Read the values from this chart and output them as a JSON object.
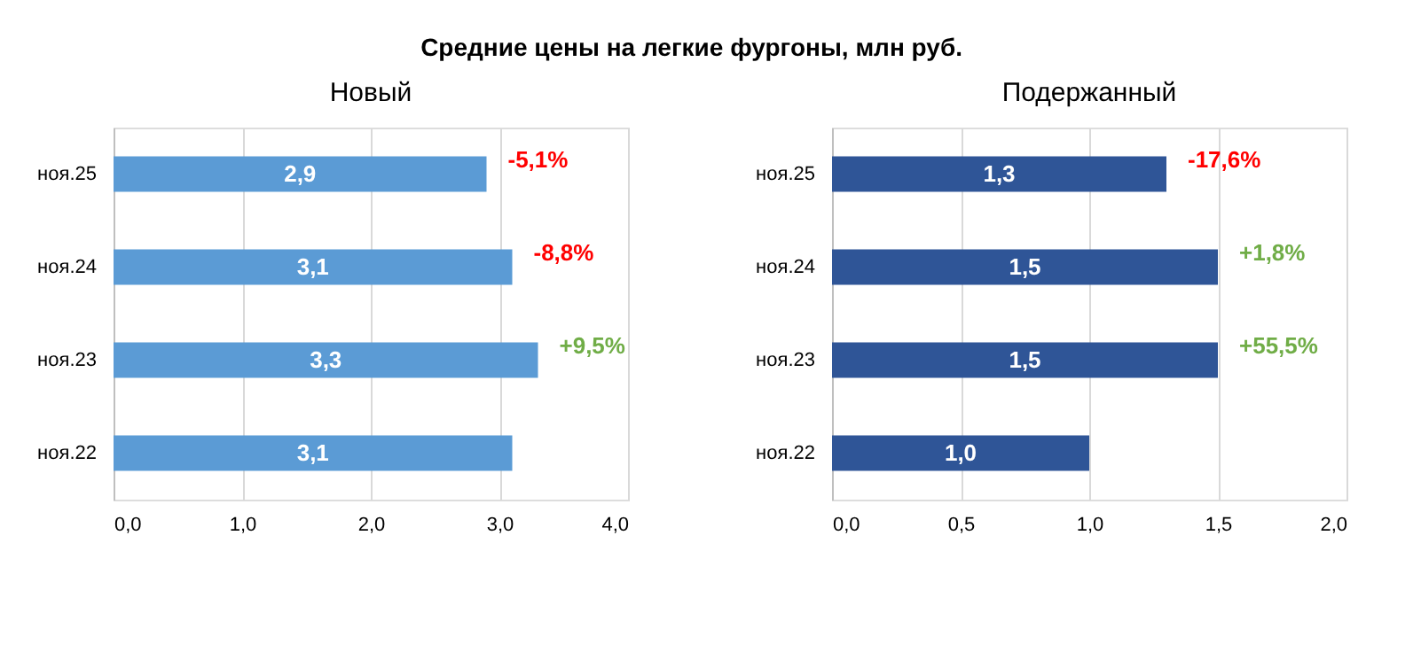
{
  "chart_data": [
    {
      "type": "bar",
      "orientation": "horizontal",
      "title": "Средние цены на легкие фургоны, млн руб.",
      "subtitle": "Новый",
      "categories": [
        "ноя.25",
        "ноя.24",
        "ноя.23",
        "ноя.22"
      ],
      "values": [
        2.9,
        3.1,
        3.3,
        3.1
      ],
      "value_labels": [
        "2,9",
        "3,1",
        "3,3",
        "3,1"
      ],
      "color": "#5b9bd5",
      "xlim": [
        0,
        4
      ],
      "xticks": [
        {
          "value": 0,
          "label": "0,0"
        },
        {
          "value": 1,
          "label": "1,0"
        },
        {
          "value": 2,
          "label": "2,0"
        },
        {
          "value": 3,
          "label": "3,0"
        },
        {
          "value": 4,
          "label": "4,0"
        }
      ],
      "grid": "x",
      "annotations": [
        {
          "text": "-5,1%",
          "x": 2.9,
          "y": "ноя.25"
        },
        {
          "text": "-8,8%",
          "x": 3.1,
          "y": "ноя.24"
        },
        {
          "text": "+9,5%",
          "x": 3.3,
          "y": "ноя.23"
        }
      ]
    },
    {
      "type": "bar",
      "orientation": "horizontal",
      "subtitle": "Подержанный",
      "categories": [
        "ноя.25",
        "ноя.24",
        "ноя.23",
        "ноя.22"
      ],
      "values": [
        1.3,
        1.5,
        1.5,
        1.0
      ],
      "value_labels": [
        "1,3",
        "1,5",
        "1,5",
        "1,0"
      ],
      "color": "#2f5597",
      "xlim": [
        0,
        2
      ],
      "xticks": [
        {
          "value": 0,
          "label": "0,0"
        },
        {
          "value": 0.5,
          "label": "0,5"
        },
        {
          "value": 1,
          "label": "1,0"
        },
        {
          "value": 1.5,
          "label": "1,5"
        },
        {
          "value": 2,
          "label": "2,0"
        }
      ],
      "grid": "x",
      "annotations": [
        {
          "text": "-17,6%",
          "x": 1.3,
          "y": "ноя.25"
        },
        {
          "text": "+1,8%",
          "x": 1.5,
          "y": "ноя.24"
        },
        {
          "text": "+55,5%",
          "x": 1.5,
          "y": "ноя.23"
        }
      ]
    }
  ]
}
